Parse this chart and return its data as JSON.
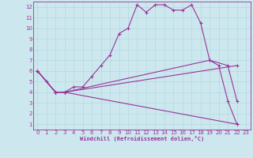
{
  "xlabel": "Windchill (Refroidissement éolien,°C)",
  "bg_color": "#cce8ee",
  "line_color": "#993399",
  "xlim": [
    -0.5,
    23.5
  ],
  "ylim": [
    0.5,
    12.5
  ],
  "xticks": [
    0,
    1,
    2,
    3,
    4,
    5,
    6,
    7,
    8,
    9,
    10,
    11,
    12,
    13,
    14,
    15,
    16,
    17,
    18,
    19,
    20,
    21,
    22,
    23
  ],
  "yticks": [
    1,
    2,
    3,
    4,
    5,
    6,
    7,
    8,
    9,
    10,
    11,
    12
  ],
  "lines": [
    {
      "x": [
        0,
        1,
        2,
        3,
        4,
        5,
        6,
        7,
        8,
        9,
        10,
        11,
        12,
        13,
        14,
        15,
        16,
        17,
        18,
        19,
        20,
        21,
        22
      ],
      "y": [
        6,
        5,
        4,
        4,
        4.5,
        4.5,
        5.5,
        6.5,
        7.5,
        9.5,
        10,
        12.2,
        11.5,
        12.2,
        12.2,
        11.7,
        11.7,
        12.2,
        10.5,
        7,
        6.5,
        3.2,
        1
      ]
    },
    {
      "x": [
        0,
        2,
        3,
        19,
        21,
        22
      ],
      "y": [
        6,
        4,
        4,
        7,
        6.5,
        3.2
      ]
    },
    {
      "x": [
        0,
        2,
        3,
        22
      ],
      "y": [
        6,
        4,
        4,
        6.5
      ]
    },
    {
      "x": [
        0,
        2,
        3,
        22
      ],
      "y": [
        6,
        4,
        4,
        1
      ]
    }
  ]
}
